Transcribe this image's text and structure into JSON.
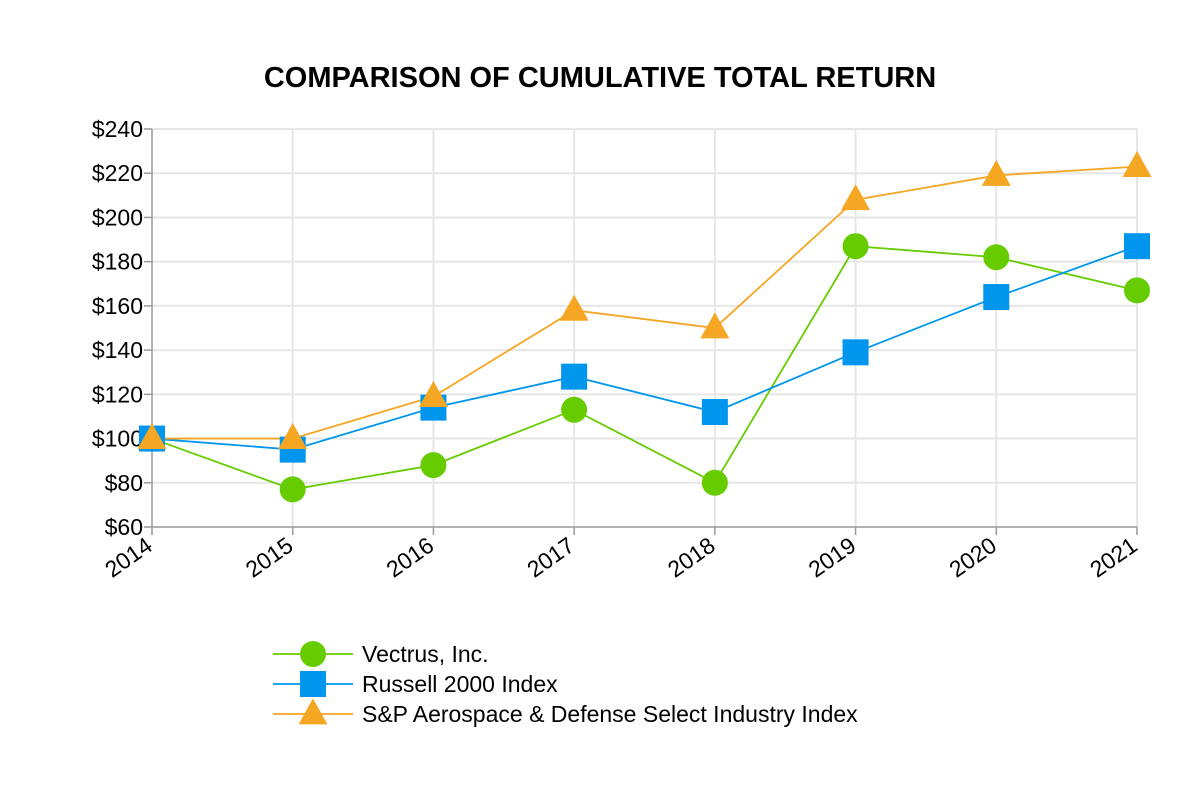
{
  "chart_data": {
    "type": "line",
    "title": "COMPARISON OF CUMULATIVE TOTAL RETURN",
    "xlabel": "",
    "ylabel": "",
    "x": [
      "2014",
      "2015",
      "2016",
      "2017",
      "2018",
      "2019",
      "2020",
      "2021"
    ],
    "ylim": [
      60,
      240
    ],
    "yticks": [
      60,
      80,
      100,
      120,
      140,
      160,
      180,
      200,
      220,
      240
    ],
    "ytick_labels": [
      "$60",
      "$80",
      "$100",
      "$120",
      "$140",
      "$160",
      "$180",
      "$200",
      "$220",
      "$240"
    ],
    "grid": true,
    "legend_position": "bottom",
    "series": [
      {
        "name": "Vectrus, Inc.",
        "color": "#66cc00",
        "marker": "circle",
        "values": [
          100,
          77,
          88,
          113,
          80,
          187,
          182,
          167
        ]
      },
      {
        "name": "Russell 2000 Index",
        "color": "#0096ee",
        "marker": "square",
        "values": [
          100,
          95,
          114,
          128,
          112,
          139,
          164,
          187
        ]
      },
      {
        "name": "S&P Aerospace & Defense Select Industry Index",
        "color": "#f5a623",
        "marker": "triangle",
        "values": [
          100,
          100,
          119,
          158,
          150,
          208,
          219,
          223
        ]
      }
    ]
  }
}
